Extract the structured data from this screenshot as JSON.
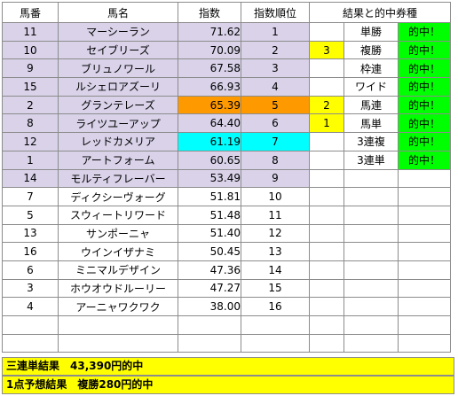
{
  "headers": {
    "number": "馬番",
    "name": "馬名",
    "index": "指数",
    "rank": "指数順位",
    "results": "結果と的中券種"
  },
  "colors": {
    "lavender": "#d9d2e9",
    "orange": "#ff9900",
    "cyan": "#00ffff",
    "yellow": "#ffff00",
    "green": "#00ff00"
  },
  "rows": [
    {
      "number": "11",
      "name": "マーシーラン",
      "index": "71.62",
      "rank": "1",
      "pos": "",
      "bet": "単勝",
      "hit": "的中！"
    },
    {
      "number": "10",
      "name": "セイブリーズ",
      "index": "70.09",
      "rank": "2",
      "pos": "3",
      "bet": "複勝",
      "hit": "的中！"
    },
    {
      "number": "9",
      "name": "ブリュノワール",
      "index": "67.58",
      "rank": "3",
      "pos": "",
      "bet": "枠連",
      "hit": "的中！"
    },
    {
      "number": "15",
      "name": "ルシェロアズーリ",
      "index": "66.93",
      "rank": "4",
      "pos": "",
      "bet": "ワイド",
      "hit": "的中！"
    },
    {
      "number": "2",
      "name": "グランテレーズ",
      "index": "65.39",
      "rank": "5",
      "pos": "2",
      "bet": "馬連",
      "hit": "的中！"
    },
    {
      "number": "8",
      "name": "ライツユーアップ",
      "index": "64.40",
      "rank": "6",
      "pos": "1",
      "bet": "馬単",
      "hit": "的中！"
    },
    {
      "number": "12",
      "name": "レッドカメリア",
      "index": "61.19",
      "rank": "7",
      "pos": "",
      "bet": "3連複",
      "hit": "的中！"
    },
    {
      "number": "1",
      "name": "アートフォーム",
      "index": "60.65",
      "rank": "8",
      "pos": "",
      "bet": "3連単",
      "hit": "的中！"
    },
    {
      "number": "14",
      "name": "モルティフレーバー",
      "index": "53.49",
      "rank": "9",
      "pos": "",
      "bet": "",
      "hit": ""
    },
    {
      "number": "7",
      "name": "ディクシーヴォーグ",
      "index": "51.81",
      "rank": "10",
      "pos": "",
      "bet": "",
      "hit": ""
    },
    {
      "number": "5",
      "name": "スウィートリワード",
      "index": "51.48",
      "rank": "11",
      "pos": "",
      "bet": "",
      "hit": ""
    },
    {
      "number": "13",
      "name": "サンポーニャ",
      "index": "51.40",
      "rank": "12",
      "pos": "",
      "bet": "",
      "hit": ""
    },
    {
      "number": "16",
      "name": "ウインイザナミ",
      "index": "50.45",
      "rank": "13",
      "pos": "",
      "bet": "",
      "hit": ""
    },
    {
      "number": "6",
      "name": "ミニマルデザイン",
      "index": "47.36",
      "rank": "14",
      "pos": "",
      "bet": "",
      "hit": ""
    },
    {
      "number": "3",
      "name": "ホウオウドルーリー",
      "index": "47.27",
      "rank": "15",
      "pos": "",
      "bet": "",
      "hit": ""
    },
    {
      "number": "4",
      "name": "アーニャワクワク",
      "index": "38.00",
      "rank": "16",
      "pos": "",
      "bet": "",
      "hit": ""
    },
    {
      "number": "",
      "name": "",
      "index": "",
      "rank": "",
      "pos": "",
      "bet": "",
      "hit": ""
    },
    {
      "number": "",
      "name": "",
      "index": "",
      "rank": "",
      "pos": "",
      "bet": "",
      "hit": ""
    }
  ],
  "summary": {
    "trifecta_result": "三連単結果　43,390円的中",
    "single_pick_result": "1点予想結果　複勝280円的中"
  }
}
